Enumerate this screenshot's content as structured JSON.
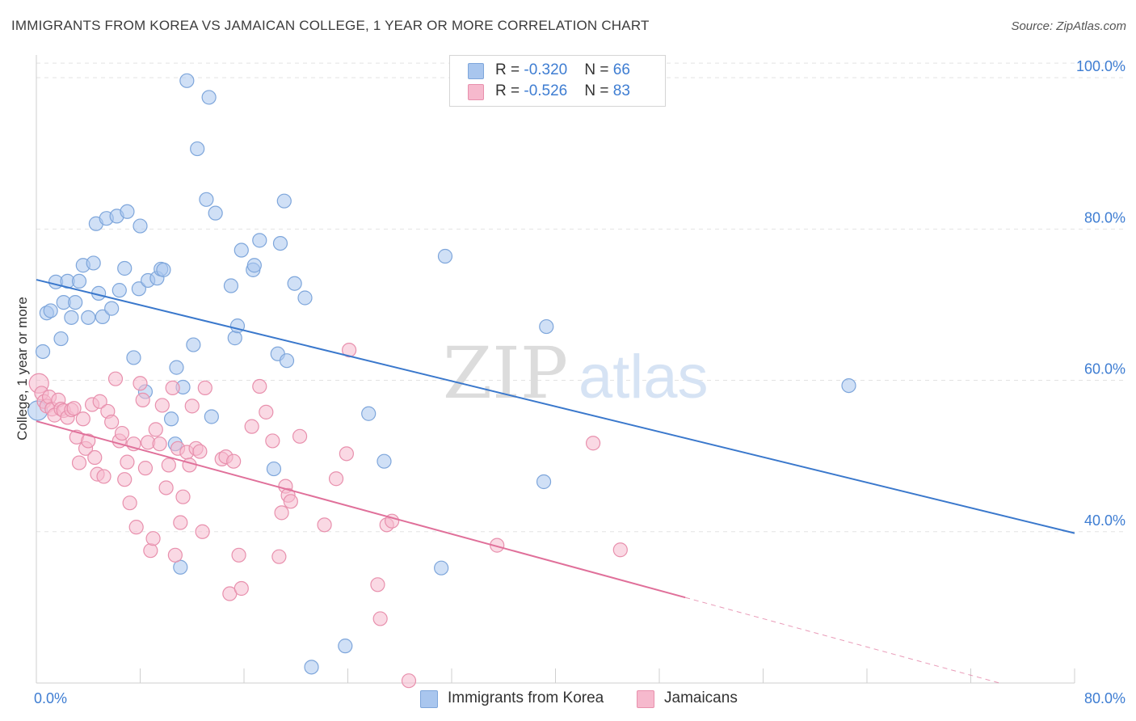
{
  "title": "IMMIGRANTS FROM KOREA VS JAMAICAN COLLEGE, 1 YEAR OR MORE CORRELATION CHART",
  "source": "Source: ZipAtlas.com",
  "watermark": {
    "zip": "ZIP",
    "atlas": "atlas"
  },
  "legend": {
    "rows": [
      {
        "r_label": "R = ",
        "r_value": "-0.320",
        "n_label": "N = ",
        "n_value": "66"
      },
      {
        "r_label": "R = ",
        "r_value": "-0.526",
        "n_label": "N = ",
        "n_value": "83"
      }
    ]
  },
  "colors": {
    "korea_fill": "#a9c6ee",
    "korea_stroke": "#7ea6db",
    "korea_line": "#3a78cc",
    "jamaica_fill": "#f6b9cd",
    "jamaica_stroke": "#e890ad",
    "jamaica_line": "#e0709a",
    "tick_label": "#3e7dd2",
    "grid": "#e3e3e3"
  },
  "chart_data": {
    "type": "scatter",
    "title": "IMMIGRANTS FROM KOREA VS JAMAICAN COLLEGE, 1 YEAR OR MORE CORRELATION CHART",
    "xlabel": "",
    "ylabel": "College, 1 year or more",
    "xlim": [
      0,
      80
    ],
    "ylim": [
      20,
      103
    ],
    "x_tick_labels": [
      "0.0%",
      "80.0%"
    ],
    "y_ticks": [
      40,
      60,
      80,
      100
    ],
    "y_tick_labels": [
      "40.0%",
      "60.0%",
      "80.0%",
      "100.0%"
    ],
    "grid": true,
    "legend_position": "top-center",
    "series": [
      {
        "name": "Immigrants from Korea",
        "r": -0.32,
        "n": 66,
        "trend": {
          "x": [
            0,
            80
          ],
          "y": [
            73.3,
            39.8
          ]
        },
        "points": [
          [
            0.1,
            56.0
          ],
          [
            0.5,
            63.8
          ],
          [
            0.8,
            68.9
          ],
          [
            1.1,
            69.2
          ],
          [
            1.5,
            73.0
          ],
          [
            1.9,
            65.5
          ],
          [
            2.1,
            70.3
          ],
          [
            2.4,
            73.1
          ],
          [
            2.7,
            68.3
          ],
          [
            3.0,
            70.3
          ],
          [
            3.3,
            73.1
          ],
          [
            3.6,
            75.2
          ],
          [
            4.0,
            68.3
          ],
          [
            4.4,
            75.5
          ],
          [
            4.6,
            80.7
          ],
          [
            4.8,
            71.5
          ],
          [
            5.1,
            68.4
          ],
          [
            5.4,
            81.4
          ],
          [
            5.8,
            69.5
          ],
          [
            6.2,
            81.7
          ],
          [
            6.4,
            71.9
          ],
          [
            6.8,
            74.8
          ],
          [
            7.0,
            82.3
          ],
          [
            7.5,
            63.0
          ],
          [
            7.9,
            72.1
          ],
          [
            8.0,
            80.4
          ],
          [
            8.4,
            58.5
          ],
          [
            8.6,
            73.2
          ],
          [
            9.3,
            73.5
          ],
          [
            9.6,
            74.7
          ],
          [
            9.8,
            74.6
          ],
          [
            10.4,
            54.9
          ],
          [
            10.7,
            51.6
          ],
          [
            10.8,
            61.7
          ],
          [
            11.1,
            35.3
          ],
          [
            11.3,
            59.1
          ],
          [
            11.6,
            99.6
          ],
          [
            12.1,
            64.7
          ],
          [
            12.4,
            90.6
          ],
          [
            13.1,
            83.9
          ],
          [
            13.3,
            97.4
          ],
          [
            13.5,
            55.2
          ],
          [
            13.8,
            82.1
          ],
          [
            15.0,
            72.5
          ],
          [
            15.3,
            65.6
          ],
          [
            15.5,
            67.2
          ],
          [
            15.8,
            77.2
          ],
          [
            16.7,
            74.6
          ],
          [
            16.8,
            75.2
          ],
          [
            17.2,
            78.5
          ],
          [
            18.3,
            48.3
          ],
          [
            18.6,
            63.5
          ],
          [
            18.8,
            78.1
          ],
          [
            19.1,
            83.7
          ],
          [
            19.3,
            62.6
          ],
          [
            19.9,
            72.8
          ],
          [
            20.7,
            70.9
          ],
          [
            21.2,
            22.1
          ],
          [
            23.8,
            24.9
          ],
          [
            25.6,
            55.6
          ],
          [
            26.8,
            49.3
          ],
          [
            31.2,
            35.2
          ],
          [
            31.5,
            76.4
          ],
          [
            39.1,
            46.6
          ],
          [
            39.3,
            67.1
          ],
          [
            62.6,
            59.3
          ]
        ]
      },
      {
        "name": "Jamaicans",
        "r": -0.526,
        "n": 83,
        "trend": {
          "x": [
            0,
            50
          ],
          "y": [
            54.6,
            31.3
          ]
        },
        "trend_dashed": {
          "x": [
            50,
            80
          ],
          "y": [
            31.3,
            17.3
          ]
        },
        "points": [
          [
            0.2,
            59.6
          ],
          [
            0.4,
            58.3
          ],
          [
            0.6,
            57.2
          ],
          [
            0.8,
            56.6
          ],
          [
            1.0,
            57.8
          ],
          [
            1.2,
            56.2
          ],
          [
            1.4,
            55.4
          ],
          [
            1.7,
            57.4
          ],
          [
            1.9,
            56.2
          ],
          [
            2.1,
            56.0
          ],
          [
            2.4,
            55.1
          ],
          [
            2.7,
            56.1
          ],
          [
            2.9,
            56.3
          ],
          [
            3.1,
            52.5
          ],
          [
            3.3,
            49.1
          ],
          [
            3.6,
            54.9
          ],
          [
            3.8,
            51.0
          ],
          [
            4.0,
            52.0
          ],
          [
            4.3,
            56.8
          ],
          [
            4.5,
            49.8
          ],
          [
            4.7,
            47.6
          ],
          [
            4.9,
            57.2
          ],
          [
            5.2,
            47.3
          ],
          [
            5.5,
            55.9
          ],
          [
            5.8,
            54.5
          ],
          [
            6.1,
            60.2
          ],
          [
            6.4,
            52.0
          ],
          [
            6.6,
            53.0
          ],
          [
            6.8,
            46.9
          ],
          [
            7.0,
            49.2
          ],
          [
            7.2,
            43.8
          ],
          [
            7.5,
            51.6
          ],
          [
            7.7,
            40.6
          ],
          [
            8.0,
            59.6
          ],
          [
            8.2,
            57.4
          ],
          [
            8.4,
            48.4
          ],
          [
            8.6,
            51.8
          ],
          [
            8.8,
            37.5
          ],
          [
            9.0,
            39.1
          ],
          [
            9.2,
            53.5
          ],
          [
            9.5,
            51.6
          ],
          [
            9.7,
            56.7
          ],
          [
            10.0,
            45.8
          ],
          [
            10.2,
            48.8
          ],
          [
            10.5,
            59.0
          ],
          [
            10.7,
            36.9
          ],
          [
            10.9,
            51.0
          ],
          [
            11.1,
            41.2
          ],
          [
            11.3,
            44.6
          ],
          [
            11.6,
            50.5
          ],
          [
            11.8,
            48.8
          ],
          [
            12.0,
            56.6
          ],
          [
            12.3,
            51.0
          ],
          [
            12.6,
            50.6
          ],
          [
            12.8,
            40.0
          ],
          [
            13.0,
            59.0
          ],
          [
            14.3,
            49.6
          ],
          [
            14.6,
            49.9
          ],
          [
            14.9,
            31.8
          ],
          [
            15.2,
            49.3
          ],
          [
            15.6,
            36.9
          ],
          [
            15.8,
            32.5
          ],
          [
            16.6,
            53.9
          ],
          [
            17.2,
            59.2
          ],
          [
            17.7,
            55.8
          ],
          [
            18.2,
            52.0
          ],
          [
            18.7,
            36.7
          ],
          [
            18.9,
            42.5
          ],
          [
            19.2,
            46.0
          ],
          [
            19.4,
            44.8
          ],
          [
            19.6,
            44.0
          ],
          [
            20.3,
            52.6
          ],
          [
            22.2,
            40.9
          ],
          [
            23.1,
            47.0
          ],
          [
            23.9,
            50.3
          ],
          [
            24.1,
            64.0
          ],
          [
            26.3,
            33.0
          ],
          [
            26.5,
            28.5
          ],
          [
            27.0,
            40.9
          ],
          [
            27.4,
            41.4
          ],
          [
            28.7,
            20.3
          ],
          [
            35.5,
            38.2
          ],
          [
            42.9,
            51.7
          ],
          [
            45.0,
            37.6
          ]
        ]
      }
    ]
  },
  "bottom_legend": [
    {
      "label": "Immigrants from Korea"
    },
    {
      "label": "Jamaicans"
    }
  ]
}
